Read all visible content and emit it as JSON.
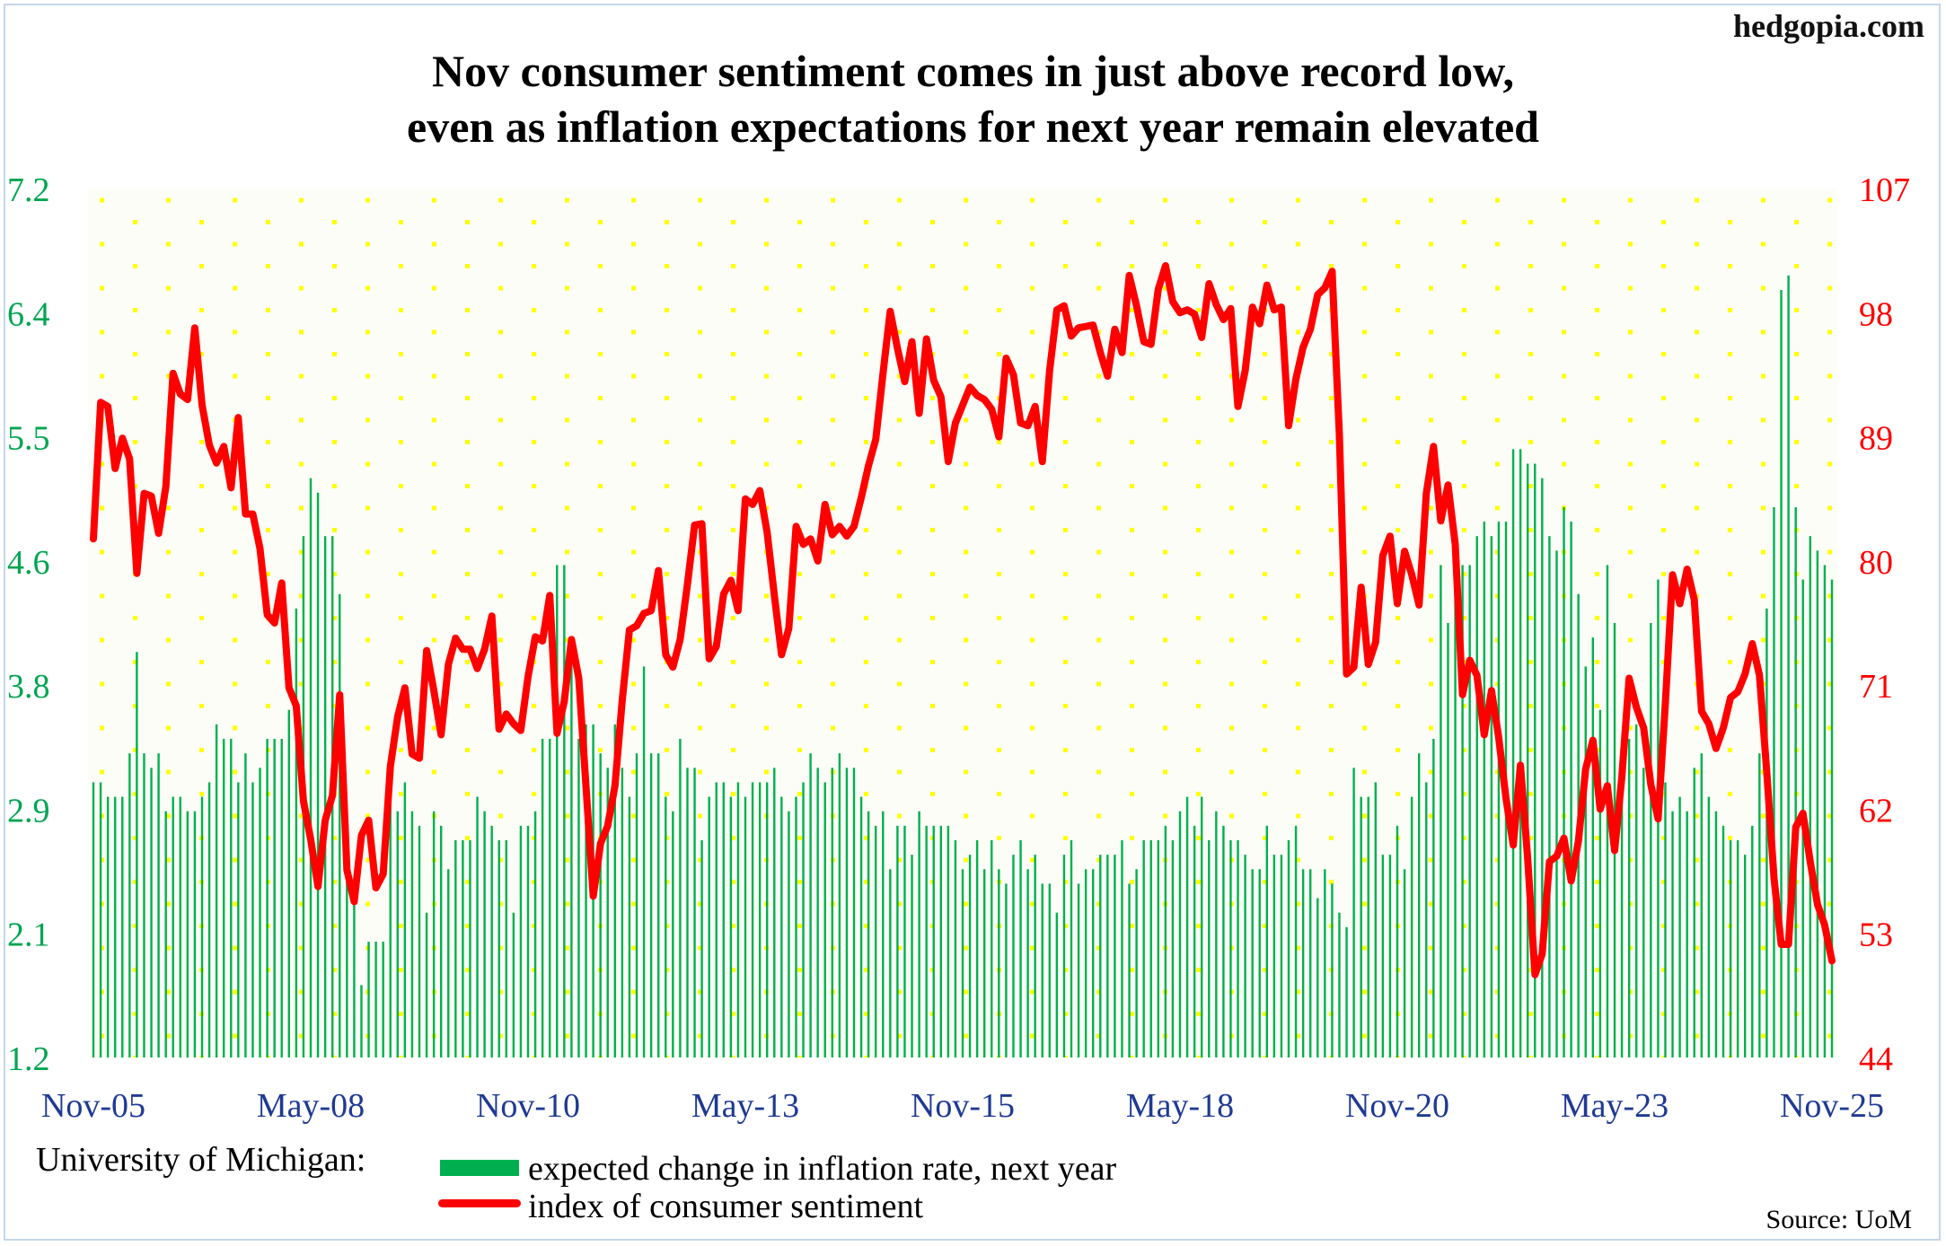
{
  "site": "hedgopia.com",
  "title_line1": "Nov consumer sentiment comes in just above record low,",
  "title_line2": "even as inflation expectations for next year remain elevated",
  "legend": {
    "label": "University of Michigan:",
    "bars": "expected change in inflation rate, next year",
    "line": "index of consumer sentiment"
  },
  "source": "Source: UoM",
  "colors": {
    "bars": "#00b050",
    "line": "#ff0000",
    "left_axis": "#00a550",
    "right_axis": "#ff0000",
    "dots": "#ffff00"
  },
  "chart_data": {
    "type": "bar+line",
    "start": "Nov-05",
    "end": "Nov-25",
    "frequency": "monthly",
    "x_tick_labels": [
      "Nov-05",
      "May-08",
      "Nov-10",
      "May-13",
      "Nov-15",
      "May-18",
      "Nov-20",
      "May-23",
      "Nov-25"
    ],
    "y_left": {
      "range": [
        1.2,
        7.2
      ],
      "ticks": [
        "1.2",
        "2.1",
        "2.9",
        "3.8",
        "4.6",
        "5.5",
        "6.4",
        "7.2"
      ]
    },
    "y_right": {
      "range": [
        44,
        107
      ],
      "ticks": [
        "44",
        "53",
        "62",
        "71",
        "80",
        "89",
        "98",
        "107"
      ]
    },
    "series": [
      {
        "name": "expected change in inflation rate, next year",
        "type": "bar",
        "axis": "left",
        "values": [
          3.1,
          3.1,
          3.0,
          3.0,
          3.0,
          3.3,
          4.0,
          3.3,
          3.2,
          3.3,
          2.9,
          3.0,
          3.0,
          2.9,
          2.9,
          3.0,
          3.1,
          3.5,
          3.4,
          3.4,
          3.1,
          3.3,
          3.1,
          3.2,
          3.4,
          3.4,
          3.4,
          3.6,
          4.3,
          4.8,
          5.2,
          5.1,
          4.8,
          4.8,
          4.4,
          2.9,
          2.4,
          1.7,
          2.0,
          2.0,
          2.0,
          3.1,
          2.9,
          3.1,
          2.9,
          2.8,
          2.2,
          2.9,
          2.8,
          2.5,
          2.7,
          2.7,
          2.7,
          3.0,
          2.9,
          2.8,
          2.7,
          2.7,
          2.2,
          2.8,
          2.8,
          2.9,
          3.4,
          3.4,
          4.6,
          4.6,
          4.1,
          3.4,
          3.5,
          3.5,
          3.3,
          3.2,
          3.5,
          3.2,
          3.0,
          3.3,
          3.9,
          3.3,
          3.3,
          3.0,
          2.9,
          3.4,
          3.2,
          3.2,
          2.7,
          3.0,
          3.1,
          3.1,
          3.0,
          3.1,
          3.0,
          3.1,
          3.1,
          3.1,
          3.2,
          3.0,
          2.9,
          3.0,
          3.1,
          3.3,
          3.2,
          3.1,
          3.2,
          3.3,
          3.2,
          3.2,
          3.0,
          2.9,
          2.8,
          2.9,
          2.5,
          2.8,
          2.8,
          2.6,
          2.9,
          2.8,
          2.8,
          2.8,
          2.8,
          2.7,
          2.5,
          2.6,
          2.7,
          2.5,
          2.7,
          2.5,
          2.4,
          2.6,
          2.7,
          2.5,
          2.6,
          2.4,
          2.4,
          2.2,
          2.6,
          2.7,
          2.4,
          2.5,
          2.5,
          2.6,
          2.6,
          2.6,
          2.7,
          2.4,
          2.5,
          2.7,
          2.7,
          2.7,
          2.8,
          2.7,
          2.9,
          3.0,
          2.8,
          3.0,
          2.7,
          2.9,
          2.8,
          2.7,
          2.7,
          2.6,
          2.5,
          2.5,
          2.8,
          2.6,
          2.6,
          2.7,
          2.8,
          2.5,
          2.5,
          2.3,
          2.5,
          2.4,
          2.2,
          2.1,
          3.2,
          3.0,
          3.0,
          3.1,
          2.6,
          2.6,
          2.8,
          2.5,
          3.0,
          3.3,
          3.1,
          3.4,
          4.6,
          4.2,
          4.7,
          4.6,
          4.6,
          4.8,
          4.9,
          4.8,
          4.9,
          4.9,
          5.4,
          5.4,
          5.3,
          5.3,
          5.2,
          4.8,
          4.7,
          5.0,
          4.9,
          4.4,
          3.9,
          4.1,
          3.6,
          4.6,
          4.2,
          3.3,
          3.4,
          3.5,
          3.2,
          4.2,
          4.5,
          3.1,
          2.9,
          3.0,
          2.9,
          3.2,
          3.3,
          3.0,
          2.9,
          2.8,
          2.7,
          2.7,
          2.6,
          2.8,
          3.3,
          4.3,
          5.0,
          6.5,
          6.6,
          5.0,
          4.5,
          4.8,
          4.7,
          4.6,
          4.5
        ]
      },
      {
        "name": "index of consumer sentiment",
        "type": "line",
        "axis": "right",
        "values": [
          81.6,
          91.5,
          91.2,
          86.7,
          88.9,
          87.4,
          79.1,
          84.9,
          84.7,
          82.0,
          85.4,
          93.6,
          92.1,
          91.7,
          96.9,
          91.3,
          88.4,
          87.1,
          88.3,
          85.3,
          90.4,
          83.4,
          83.4,
          80.9,
          76.1,
          75.5,
          78.4,
          70.8,
          69.5,
          62.6,
          59.8,
          56.4,
          61.2,
          63.0,
          70.3,
          57.6,
          55.3,
          60.1,
          61.2,
          56.3,
          57.3,
          65.1,
          68.7,
          70.8,
          66.0,
          65.7,
          73.5,
          70.6,
          67.4,
          72.5,
          74.4,
          73.6,
          73.6,
          72.2,
          73.6,
          76.0,
          67.8,
          68.9,
          68.2,
          67.7,
          71.6,
          74.5,
          74.2,
          77.5,
          67.5,
          69.8,
          74.3,
          71.5,
          63.7,
          55.7,
          59.5,
          60.8,
          63.7,
          69.9,
          75.0,
          75.3,
          76.2,
          76.4,
          79.3,
          73.2,
          72.3,
          74.3,
          78.3,
          82.6,
          82.7,
          72.9,
          73.8,
          77.6,
          78.6,
          76.4,
          84.5,
          84.1,
          85.1,
          82.1,
          77.5,
          73.2,
          75.1,
          82.5,
          81.2,
          81.6,
          80.0,
          84.1,
          81.9,
          82.5,
          81.8,
          82.5,
          84.6,
          86.9,
          88.8,
          93.6,
          98.1,
          95.4,
          93.0,
          95.9,
          90.7,
          96.1,
          93.1,
          91.9,
          87.2,
          90.0,
          91.3,
          92.6,
          92.0,
          91.7,
          91.0,
          89.0,
          94.7,
          93.5,
          90.0,
          89.8,
          91.2,
          87.2,
          93.8,
          98.2,
          98.5,
          96.3,
          96.9,
          97.0,
          97.1,
          95.1,
          93.4,
          96.8,
          95.1,
          100.7,
          98.5,
          95.9,
          95.7,
          99.7,
          101.4,
          98.8,
          98.0,
          98.2,
          97.9,
          96.2,
          100.1,
          98.6,
          97.5,
          98.3,
          91.2,
          93.8,
          98.4,
          97.2,
          100.0,
          98.2,
          98.4,
          89.8,
          93.2,
          95.5,
          96.8,
          99.3,
          99.8,
          101.0,
          89.1,
          71.8,
          72.3,
          78.1,
          72.5,
          74.1,
          80.4,
          81.8,
          76.9,
          80.7,
          79.0,
          76.8,
          84.9,
          88.3,
          82.9,
          85.5,
          81.2,
          70.3,
          72.8,
          71.7,
          67.4,
          70.6,
          67.2,
          62.8,
          59.4,
          65.2,
          58.4,
          50.0,
          51.5,
          58.2,
          58.6,
          59.9,
          56.8,
          59.7,
          64.9,
          67.0,
          62.0,
          63.7,
          59.0,
          64.4,
          71.5,
          69.4,
          67.9,
          63.8,
          61.3,
          69.7,
          79.0,
          76.9,
          79.4,
          77.2,
          69.1,
          68.2,
          66.4,
          67.9,
          70.1,
          70.5,
          71.8,
          74.0,
          71.7,
          64.7,
          57.0,
          52.2,
          52.2,
          60.7,
          61.7,
          58.2,
          55.1,
          53.6,
          51.0
        ]
      }
    ],
    "grid": "dotted background",
    "legend_position": "bottom-left"
  }
}
